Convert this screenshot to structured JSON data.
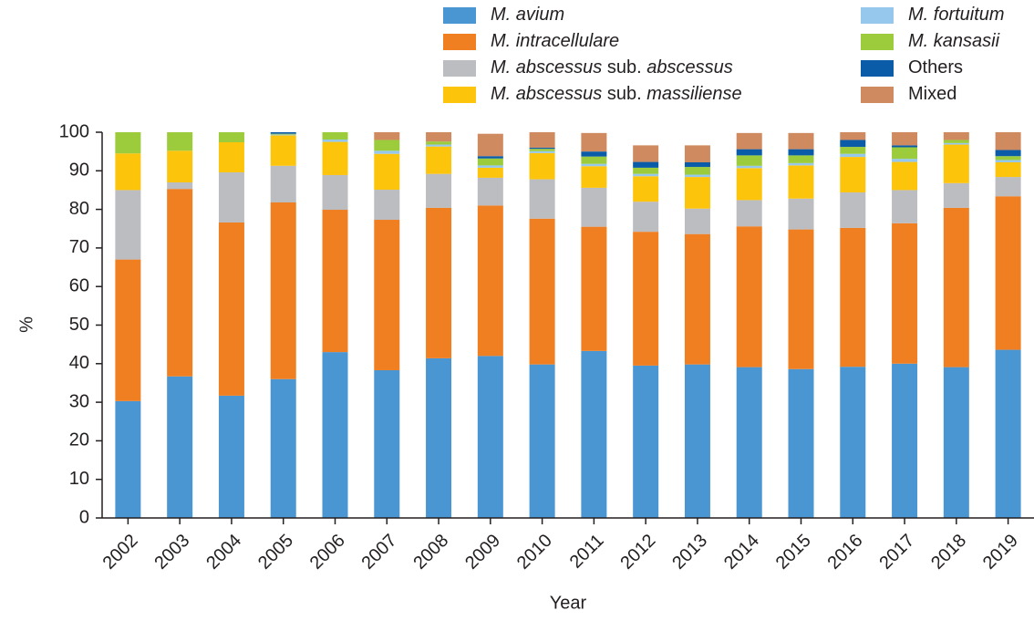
{
  "chart_data": {
    "type": "bar",
    "stacked": true,
    "x_label": "Year",
    "y_label": "%",
    "categories": [
      "2002",
      "2003",
      "2004",
      "2005",
      "2006",
      "2007",
      "2008",
      "2009",
      "2010",
      "2011",
      "2012",
      "2013",
      "2014",
      "2015",
      "2016",
      "2017",
      "2018",
      "2019"
    ],
    "series": [
      {
        "name": "M. avium",
        "color": "#4a96d2",
        "values": [
          30.3,
          36.7,
          31.7,
          36,
          43,
          38.3,
          41.4,
          42,
          39.8,
          43.3,
          39.5,
          39.8,
          39.1,
          38.6,
          39.2,
          40,
          39.1,
          43.6
        ]
      },
      {
        "name": "M. intracellulare",
        "color": "#f07f22",
        "values": [
          36.7,
          48.6,
          44.9,
          45.8,
          36.9,
          39,
          39,
          39,
          37.8,
          32.2,
          34.7,
          33.8,
          36.5,
          36.2,
          36,
          36.4,
          41.3,
          39.8
        ]
      },
      {
        "name": "M. abscessus sub. abscessus",
        "color": "#bcbdc0",
        "values": [
          18,
          1.7,
          13,
          9.5,
          9,
          7.8,
          8.8,
          7.2,
          10.2,
          10.1,
          7.8,
          6.6,
          6.8,
          8,
          9.2,
          8.6,
          6.4,
          5
        ]
      },
      {
        "name": "M. abscessus sub. massiliense",
        "color": "#fdc40c",
        "values": [
          9.5,
          8.2,
          7.8,
          7.9,
          8.6,
          9.3,
          7.1,
          2.6,
          6.8,
          5.6,
          6.6,
          8.2,
          8.3,
          8.6,
          9.2,
          7.3,
          10,
          3.8
        ]
      },
      {
        "name": "M. fortuitum",
        "color": "#95c8ec",
        "values": [
          0,
          0,
          0,
          0.2,
          0.6,
          0.8,
          0.5,
          0.6,
          0.5,
          0.6,
          0.6,
          0.6,
          0.6,
          0.6,
          0.8,
          0.8,
          0.4,
          0.6
        ]
      },
      {
        "name": "M. kansasii",
        "color": "#9ccb3c",
        "values": [
          5.5,
          4.8,
          2.6,
          0.2,
          1.9,
          2.8,
          0.8,
          1.8,
          0.6,
          1.9,
          1.6,
          2,
          2.7,
          2,
          1.8,
          3,
          0.8,
          1
        ]
      },
      {
        "name": "Others",
        "color": "#0a5ca8",
        "values": [
          0,
          0,
          0,
          0.4,
          0,
          0,
          0,
          0.6,
          0.3,
          1.3,
          1.5,
          1.2,
          1.6,
          1.6,
          1.8,
          0.5,
          0,
          1.6
        ]
      },
      {
        "name": "Mixed",
        "color": "#cf8b5f",
        "values": [
          0,
          0,
          0,
          0,
          0,
          2,
          2.4,
          5.8,
          4,
          4.8,
          4.3,
          4.4,
          4.2,
          4.2,
          2,
          3.4,
          2,
          4.6
        ]
      }
    ],
    "ylim": [
      0,
      100
    ],
    "yticks": [
      0,
      10,
      20,
      30,
      40,
      50,
      60,
      70,
      80,
      90,
      100
    ],
    "grid": false
  }
}
